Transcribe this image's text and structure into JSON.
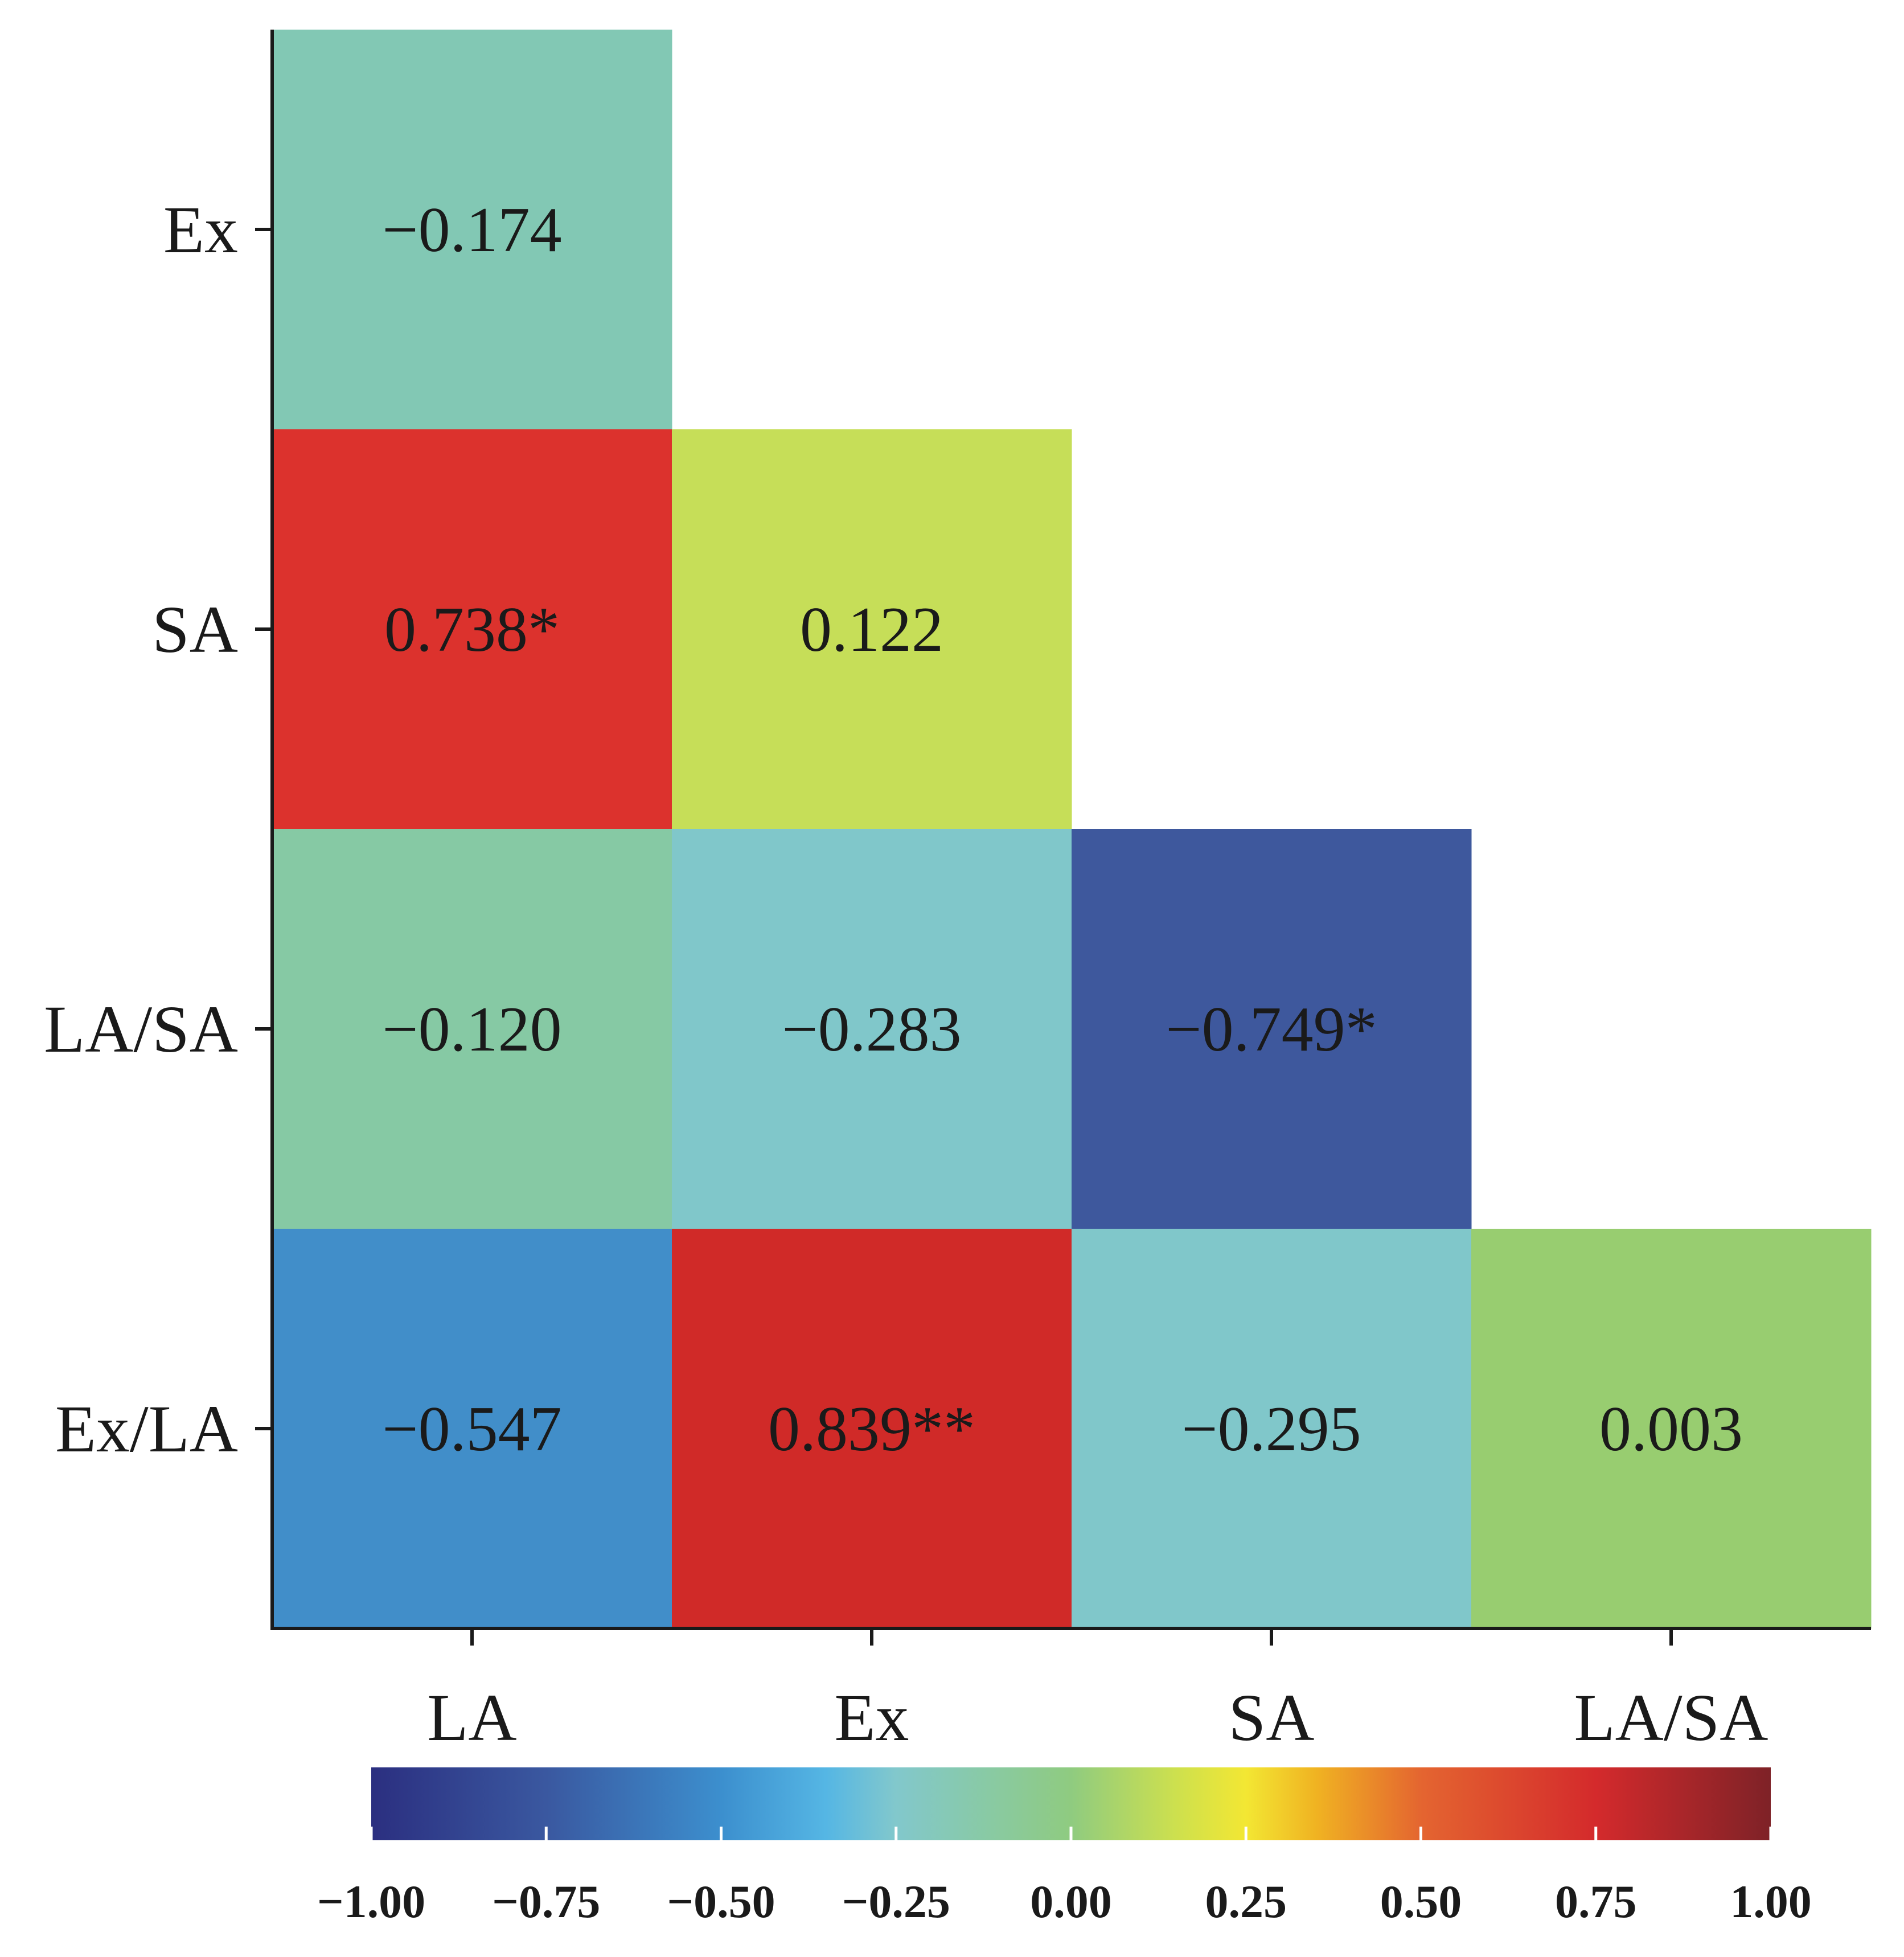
{
  "chart_data": {
    "type": "heatmap",
    "title": "",
    "xlabel": "",
    "ylabel": "",
    "x_categories": [
      "LA",
      "Ex",
      "SA",
      "LA/SA"
    ],
    "y_categories": [
      "Ex",
      "SA",
      "LA/SA",
      "Ex/LA"
    ],
    "cells": [
      {
        "row": "Ex",
        "col": "LA",
        "value": -0.174,
        "label": "−0.174",
        "color": "#82c8b4"
      },
      {
        "row": "SA",
        "col": "LA",
        "value": 0.738,
        "label": "0.738*",
        "color": "#dc322d"
      },
      {
        "row": "SA",
        "col": "Ex",
        "value": 0.122,
        "label": "0.122",
        "color": "#c6de58"
      },
      {
        "row": "LA/SA",
        "col": "LA",
        "value": -0.12,
        "label": "−0.120",
        "color": "#86c9a4"
      },
      {
        "row": "LA/SA",
        "col": "Ex",
        "value": -0.283,
        "label": "−0.283",
        "color": "#80c7ca"
      },
      {
        "row": "LA/SA",
        "col": "SA",
        "value": -0.749,
        "label": "−0.749*",
        "color": "#3e589d"
      },
      {
        "row": "Ex/LA",
        "col": "LA",
        "value": -0.547,
        "label": "−0.547",
        "color": "#418ec9"
      },
      {
        "row": "Ex/LA",
        "col": "Ex",
        "value": 0.839,
        "label": "0.839**",
        "color": "#d02a28"
      },
      {
        "row": "Ex/LA",
        "col": "SA",
        "value": -0.295,
        "label": "−0.295",
        "color": "#80c7ca"
      },
      {
        "row": "Ex/LA",
        "col": "LA/SA",
        "value": 0.003,
        "label": "0.003",
        "color": "#98cd70"
      }
    ],
    "colorbar": {
      "range": [
        -1.0,
        1.0
      ],
      "ticks": [
        -1.0,
        -0.75,
        -0.5,
        -0.25,
        0.0,
        0.25,
        0.5,
        0.75,
        1.0
      ],
      "tick_labels": [
        "−1.00",
        "−0.75",
        "−0.50",
        "−0.25",
        "0.00",
        "0.25",
        "0.50",
        "0.75",
        "1.00"
      ],
      "placement": "bottom",
      "stops": [
        {
          "value": -1.0,
          "color": "#2b2f80"
        },
        {
          "value": -0.75,
          "color": "#3a58a0"
        },
        {
          "value": -0.5,
          "color": "#3c8fce"
        },
        {
          "value": -0.35,
          "color": "#55b6e4"
        },
        {
          "value": -0.25,
          "color": "#82c8cc"
        },
        {
          "value": 0.0,
          "color": "#8fcb80"
        },
        {
          "value": 0.15,
          "color": "#cde04e"
        },
        {
          "value": 0.25,
          "color": "#f3e733"
        },
        {
          "value": 0.35,
          "color": "#f0b322"
        },
        {
          "value": 0.5,
          "color": "#e46530"
        },
        {
          "value": 0.75,
          "color": "#d42a2c"
        },
        {
          "value": 1.0,
          "color": "#7e2227"
        }
      ]
    }
  }
}
